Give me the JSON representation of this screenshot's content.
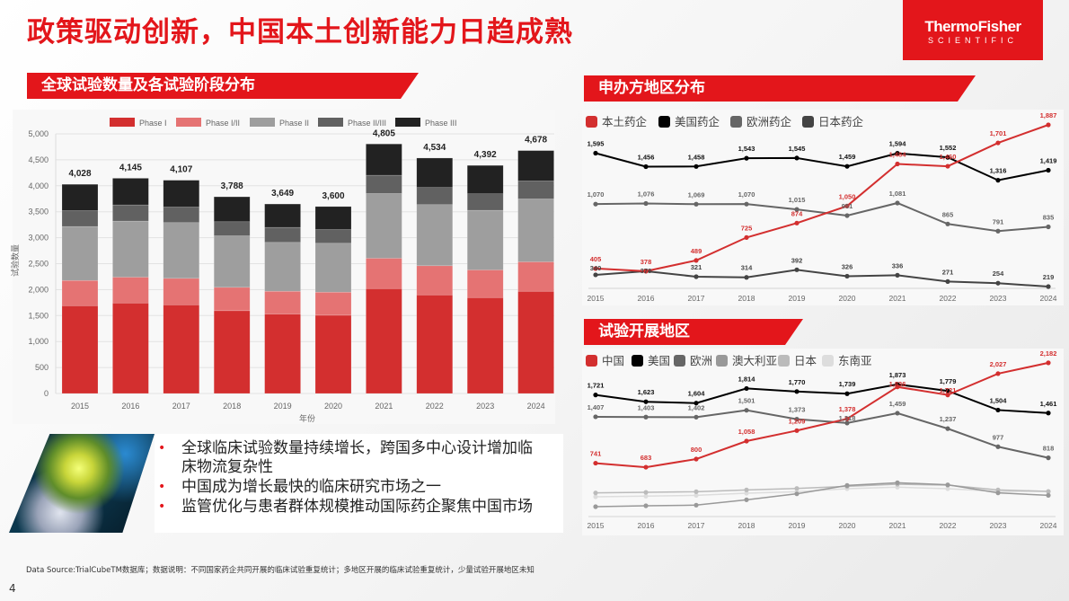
{
  "title": "政策驱动创新，中国本土创新能力日趋成熟",
  "logo": {
    "line1": "ThermoFisher",
    "line2": "SCIENTIFIC"
  },
  "sections": {
    "left": "全球试验数量及各试验阶段分布",
    "right_top": "申办方地区分布",
    "right_bottom": "试验开展地区"
  },
  "bullets": [
    "全球临床试验数量持续增长，跨国多中心设计增加临床物流复杂性",
    "中国成为增长最快的临床研究市场之一",
    "监管优化与患者群体规模推动国际药企聚焦中国市场"
  ],
  "bullet_marker": "•",
  "footer": "Data Source:TrialCubeTM数据库；数据说明：不同国家药企共同开展的临床试验重复统计；多地区开展的临床试验重复统计，少量试验开展地区未知",
  "page_number": "4",
  "chart_data": [
    {
      "type": "bar",
      "stacked": true,
      "xlabel": "年份",
      "ylabel": "试验数量",
      "ylim": [
        0,
        5000
      ],
      "yticks": [
        0,
        500,
        1000,
        1500,
        2000,
        2500,
        3000,
        3500,
        4000,
        4500,
        5000
      ],
      "grid": true,
      "legend": "top",
      "categories": [
        "2015",
        "2016",
        "2017",
        "2018",
        "2019",
        "2020",
        "2021",
        "2022",
        "2023",
        "2024"
      ],
      "series": [
        {
          "name": "Phase I",
          "color": "#d32f2f",
          "values": [
            1692,
            1744,
            1709,
            1594,
            1530,
            1507,
            2021,
            1900,
            1848,
            1969
          ]
        },
        {
          "name": "Phase I/II",
          "color": "#e57373",
          "values": [
            485,
            496,
            508,
            450,
            439,
            445,
            583,
            560,
            531,
            566
          ]
        },
        {
          "name": "Phase II",
          "color": "#9e9e9e",
          "values": [
            1039,
            1080,
            1074,
            993,
            941,
            941,
            1247,
            1177,
            1149,
            1212
          ]
        },
        {
          "name": "Phase II/III",
          "color": "#616161",
          "values": [
            306,
            312,
            300,
            271,
            289,
            265,
            352,
            330,
            317,
            347
          ]
        },
        {
          "name": "Phase III",
          "color": "#222222",
          "values": [
            506,
            513,
            516,
            480,
            450,
            442,
            602,
            567,
            547,
            584
          ]
        }
      ],
      "totals": [
        "4,028",
        "4,145",
        "4,107",
        "3,788",
        "3,649",
        "3,600",
        "4,805",
        "4,534",
        "4,392",
        "4,678"
      ]
    },
    {
      "type": "line",
      "legend": "top-left",
      "grid": false,
      "categories": [
        "2015",
        "2016",
        "2017",
        "2018",
        "2019",
        "2020",
        "2021",
        "2022",
        "2023",
        "2024"
      ],
      "series": [
        {
          "name": "本土药企",
          "color": "#d32f2f",
          "labels": true,
          "values": [
            405,
            378,
            489,
            725,
            874,
            1050,
            1484,
            1460,
            1701,
            1887
          ]
        },
        {
          "name": "美国药企",
          "color": "#000000",
          "labels": true,
          "values": [
            1595,
            1456,
            1458,
            1543,
            1545,
            1459,
            1594,
            1552,
            1316,
            1419
          ]
        },
        {
          "name": "欧洲药企",
          "color": "#666666",
          "labels": true,
          "values": [
            1070,
            1076,
            1069,
            1070,
            1015,
            951,
            1081,
            865,
            791,
            835
          ]
        },
        {
          "name": "日本药企",
          "color": "#444444",
          "labels": true,
          "values": [
            340,
            378,
            321,
            314,
            392,
            326,
            336,
            271,
            254,
            219
          ]
        }
      ]
    },
    {
      "type": "line",
      "legend": "top-left",
      "grid": false,
      "categories": [
        "2015",
        "2016",
        "2017",
        "2018",
        "2019",
        "2020",
        "2021",
        "2022",
        "2023",
        "2024"
      ],
      "series": [
        {
          "name": "中国",
          "color": "#d32f2f",
          "labels": true,
          "values": [
            741,
            683,
            800,
            1058,
            1209,
            1378,
            1836,
            1721,
            2027,
            2182
          ]
        },
        {
          "name": "美国",
          "color": "#000000",
          "labels": true,
          "values": [
            1721,
            1623,
            1604,
            1814,
            1770,
            1739,
            1873,
            1779,
            1504,
            1461
          ]
        },
        {
          "name": "欧洲",
          "color": "#666666",
          "labels": true,
          "values": [
            1407,
            1403,
            1402,
            1501,
            1373,
            1318,
            1459,
            1237,
            977,
            818
          ]
        },
        {
          "name": "澳大利亚",
          "color": "#999999",
          "labels": false,
          "values": [
            116,
            129,
            138,
            215,
            301,
            421,
            460,
            430,
            314,
            279
          ]
        },
        {
          "name": "日本",
          "color": "#bbbbbb",
          "labels": false,
          "values": [
            314,
            322,
            331,
            357,
            378,
            408,
            438,
            426,
            357,
            335
          ]
        },
        {
          "name": "东南亚",
          "color": "#dddddd",
          "labels": false,
          "values": [
            258,
            267,
            279,
            310,
            331,
            374,
            396,
            374,
            335,
            335
          ]
        }
      ]
    }
  ]
}
